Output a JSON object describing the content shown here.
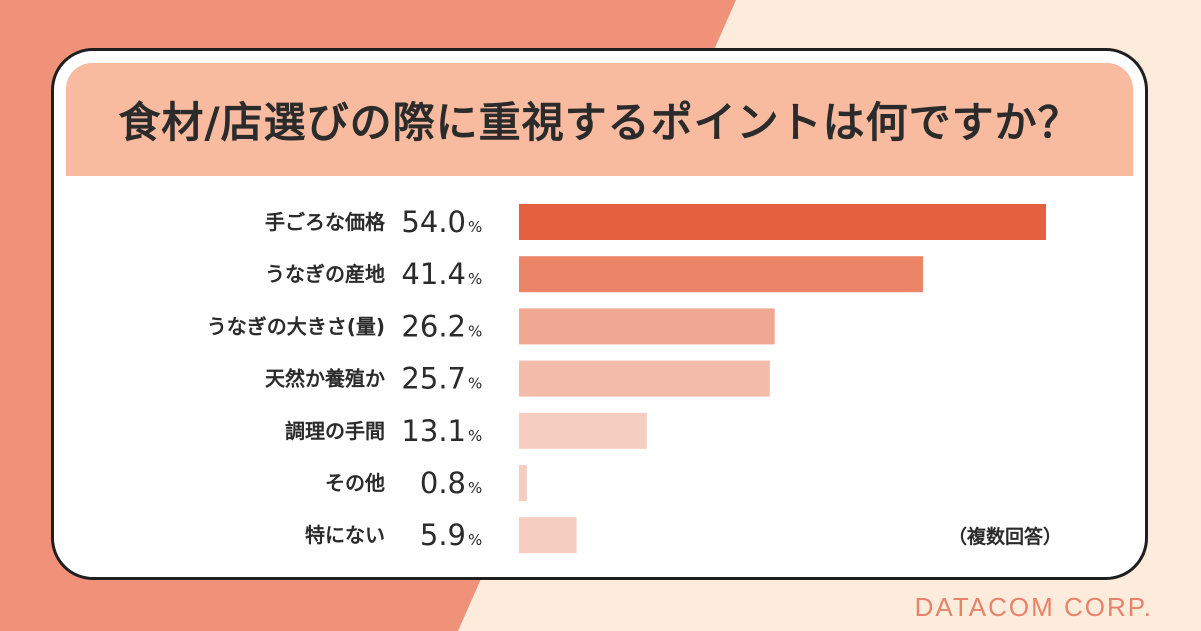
{
  "title": "食材/店選びの際に重視するポイントは何ですか？",
  "note": "（複数回答）",
  "brand": "DATACOM CORP.",
  "colors": {
    "bg_left": "#f0917a",
    "bg_right": "#fdecdc",
    "title_band": "#f8bb9f",
    "text": "#2b2b2b",
    "brand": "#e8826a"
  },
  "chart_data": {
    "type": "bar",
    "orientation": "horizontal",
    "categories": [
      "手ごろな価格",
      "うなぎの産地",
      "うなぎの大きさ(量)",
      "天然か養殖か",
      "調理の手間",
      "その他",
      "特にない"
    ],
    "values": [
      54.0,
      41.4,
      26.2,
      25.7,
      13.1,
      0.8,
      5.9
    ],
    "value_labels": [
      "54.0",
      "41.4",
      "26.2",
      "25.7",
      "13.1",
      "0.8",
      "5.9"
    ],
    "unit": "%",
    "bar_colors": [
      "#e4603f",
      "#ec8468",
      "#f0a893",
      "#f3bbaa",
      "#f6cdc1",
      "#f6cdc1",
      "#f6cdc1"
    ],
    "xlim": [
      0,
      54.0
    ],
    "grid": false
  }
}
